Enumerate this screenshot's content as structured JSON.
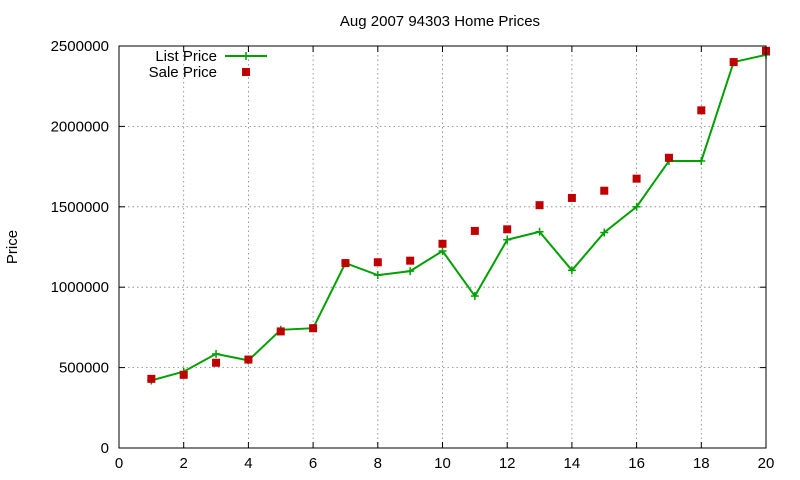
{
  "chart_data": {
    "type": "line",
    "title": "Aug 2007 94303 Home Prices",
    "xlabel": "",
    "ylabel": "Price",
    "xlim": [
      0,
      20
    ],
    "ylim": [
      0,
      2500000
    ],
    "x_ticks": [
      0,
      2,
      4,
      6,
      8,
      10,
      12,
      14,
      16,
      18,
      20
    ],
    "y_ticks": [
      0,
      500000,
      1000000,
      1500000,
      2000000,
      2500000
    ],
    "grid": true,
    "legend_position": "top-left",
    "x": [
      1,
      2,
      3,
      4,
      5,
      6,
      7,
      8,
      9,
      10,
      11,
      12,
      13,
      14,
      15,
      16,
      17,
      18,
      19,
      20
    ],
    "series": [
      {
        "name": "List Price",
        "style": "line+cross",
        "color": "#00a000",
        "values": [
          420000,
          475000,
          585000,
          545000,
          735000,
          745000,
          1150000,
          1075000,
          1100000,
          1225000,
          945000,
          1295000,
          1345000,
          1105000,
          1340000,
          1500000,
          1785000,
          1785000,
          2400000,
          2445000
        ]
      },
      {
        "name": "Sale Price",
        "style": "square-points",
        "color": "#c00000",
        "values": [
          430000,
          455000,
          530000,
          550000,
          725000,
          745000,
          1150000,
          1155000,
          1165000,
          1270000,
          1350000,
          1360000,
          1510000,
          1555000,
          1600000,
          1675000,
          1805000,
          2100000,
          2400000,
          2470000
        ]
      }
    ]
  }
}
